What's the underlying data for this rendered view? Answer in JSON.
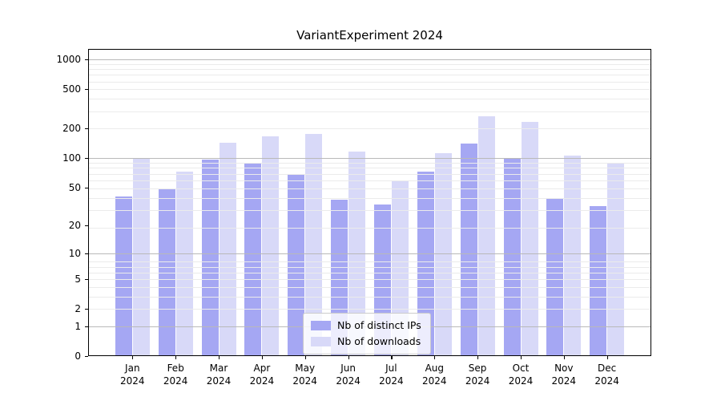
{
  "chart_data": {
    "type": "bar",
    "title": "VariantExperiment 2024",
    "categories": [
      "Jan",
      "Feb",
      "Mar",
      "Apr",
      "May",
      "Jun",
      "Jul",
      "Aug",
      "Sep",
      "Oct",
      "Nov",
      "Dec"
    ],
    "category_year_line": "2024",
    "series": [
      {
        "name": "Nb of distinct IPs",
        "color": "#a5a7f3",
        "values": [
          40,
          48,
          97,
          90,
          67,
          37,
          33,
          73,
          140,
          98,
          39,
          32
        ]
      },
      {
        "name": "Nb of downloads",
        "color": "#d8d9f8",
        "values": [
          100,
          72,
          143,
          165,
          176,
          117,
          58,
          111,
          265,
          232,
          106,
          89
        ]
      }
    ],
    "y_ticks": [
      0,
      1,
      2,
      5,
      10,
      20,
      50,
      100,
      200,
      500,
      1000
    ],
    "y_scale": "log10(1+v)",
    "ylim": [
      0,
      1290
    ],
    "xlabel": "",
    "ylabel": "",
    "grid": true,
    "grid_over_bars": true,
    "legend_position": "lower center inside plot"
  }
}
